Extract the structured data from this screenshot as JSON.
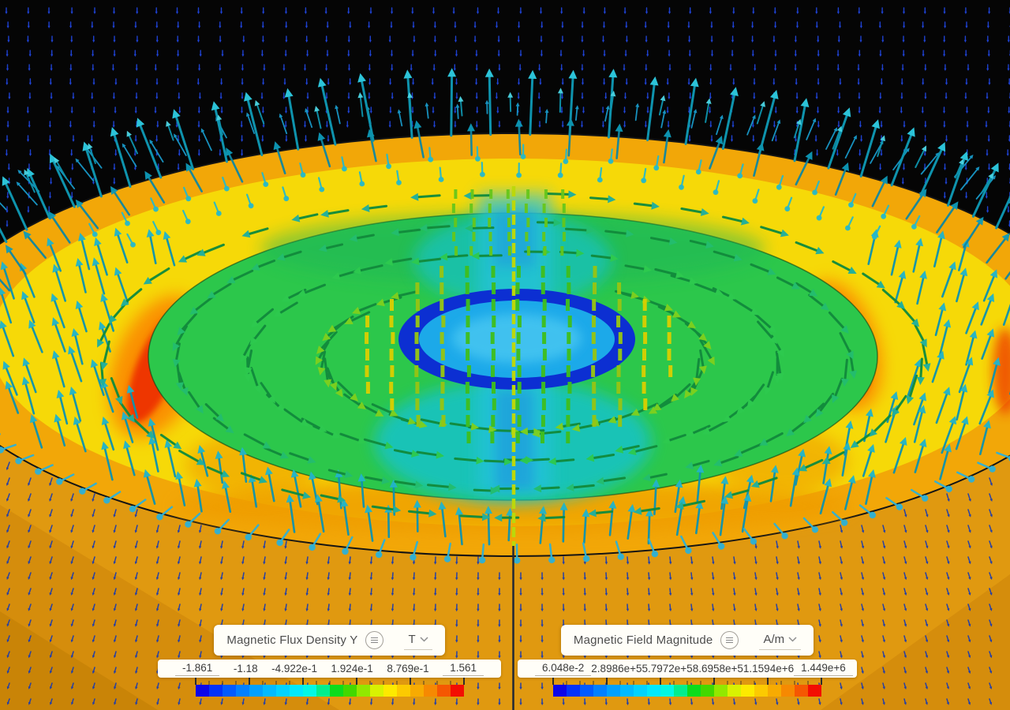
{
  "viewport": {
    "description": "3D magnetostatics post-processing view with vector field glyphs over a colored cutting plane"
  },
  "scene": {
    "background_color": "#050505",
    "ground": {
      "base": "#e09910",
      "shade": "#d58d0c",
      "corner_shade": "#c98407"
    },
    "disc": {
      "outer_orange": "#f2a708",
      "yellow": "#f6d908",
      "inner_orange_band": "#ef9d06",
      "hot_spot_red": "#ee3203",
      "hot_spot_orange": "#fb7e04",
      "green": "#2cc74b",
      "green_dark_edge": "#0b3d14",
      "teal_patch": "#16c3c9",
      "plume_cyan": "#27c2e2",
      "core_ring_blue": "#0c2fd2",
      "core_cyan": "#1ca9e9",
      "core_light": "#47c6f1",
      "outline": "#141414"
    },
    "glyphs": {
      "far_field_blue": "#2147e2",
      "ground_navy": "#1c3cae",
      "rim_teal_shaft": "#0e93ad",
      "rim_teal": "#2cc3d8",
      "rim_teal_dark": "#0e9ab8",
      "rim_teal_light": "#4cd5e4",
      "transition_cyan": "#1899c8",
      "swirl_yellow_green": "#7ed01e",
      "swirl_green": "#2dc94e",
      "swirl_teal_green": "#23bd6e",
      "swirl_teal": "#1fae9e",
      "band_teal": "#22b4c8",
      "dot_teal": "#27b8c8",
      "dash_yellow": "#d8ce00",
      "dash_lime": "#96c414",
      "dash_green": "#3fbe1e",
      "picket_green": "#66c61a",
      "axis_yellow": "#bcd80a",
      "axis_dark": "#1f2836"
    }
  },
  "legends": [
    {
      "title": "Magnetic Flux Density Y",
      "menu_icon": "hamburger-circle-icon",
      "unit": "T",
      "unit_dropdown_icon": "chevron-down-icon",
      "scale_values": [
        "-1.861",
        "-1.18",
        "-4.922e-1",
        "1.924e-1",
        "8.769e-1",
        "1.561"
      ],
      "colorbar": [
        "#0b06e8",
        "#0233fb",
        "#015bff",
        "#0180ff",
        "#01a0ff",
        "#01baff",
        "#01d2ff",
        "#01e8fc",
        "#02f8e4",
        "#01ee8e",
        "#0cdc1c",
        "#42d800",
        "#92e800",
        "#d8f202",
        "#fdea00",
        "#fcca01",
        "#f7ab02",
        "#f68902",
        "#f55702",
        "#f30e02"
      ]
    },
    {
      "title": "Magnetic Field Magnitude",
      "menu_icon": "hamburger-circle-icon",
      "unit": "A/m",
      "unit_dropdown_icon": "chevron-down-icon",
      "scale_values": [
        "6.048e-2",
        "2.8986e+5",
        "5.7972e+5",
        "8.6958e+5",
        "1.1594e+6",
        "1.449e+6"
      ],
      "colorbar": [
        "#0b06e8",
        "#0233fb",
        "#015bff",
        "#0180ff",
        "#01a0ff",
        "#01baff",
        "#01d2ff",
        "#01e8fc",
        "#02f8e4",
        "#01ee8e",
        "#0cdc1c",
        "#42d800",
        "#92e800",
        "#d8f202",
        "#fdea00",
        "#fcca01",
        "#f7ab02",
        "#f68902",
        "#f55702",
        "#f30e02"
      ]
    }
  ]
}
